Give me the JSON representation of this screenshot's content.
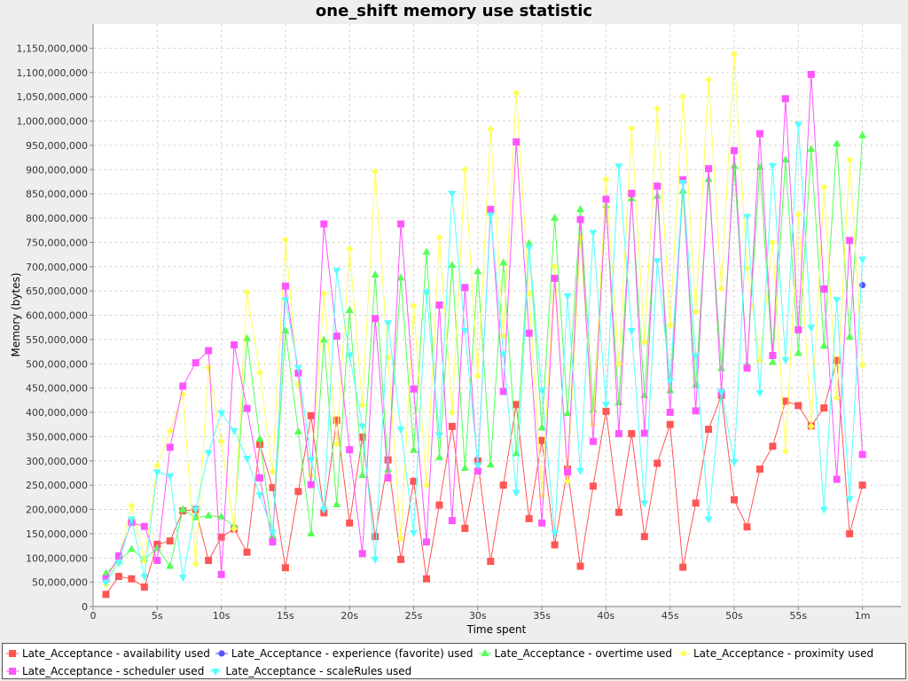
{
  "chart_data": {
    "type": "line",
    "title": "one_shift memory use statistic",
    "xlabel": "Time spent",
    "ylabel": "Memory (bytes)",
    "xlim": [
      0,
      63
    ],
    "ylim": [
      0,
      1200000000
    ],
    "grid": true,
    "legend_position": "bottom",
    "x_ticks": [
      {
        "value": 0,
        "label": "0"
      },
      {
        "value": 5,
        "label": "5s"
      },
      {
        "value": 10,
        "label": "10s"
      },
      {
        "value": 15,
        "label": "15s"
      },
      {
        "value": 20,
        "label": "20s"
      },
      {
        "value": 25,
        "label": "25s"
      },
      {
        "value": 30,
        "label": "30s"
      },
      {
        "value": 35,
        "label": "35s"
      },
      {
        "value": 40,
        "label": "40s"
      },
      {
        "value": 45,
        "label": "45s"
      },
      {
        "value": 50,
        "label": "50s"
      },
      {
        "value": 55,
        "label": "55s"
      },
      {
        "value": 60,
        "label": "1m"
      }
    ],
    "y_ticks": [
      {
        "value": 0,
        "label": "0"
      },
      {
        "value": 50000000,
        "label": "50,000,000"
      },
      {
        "value": 100000000,
        "label": "100,000,000"
      },
      {
        "value": 150000000,
        "label": "150,000,000"
      },
      {
        "value": 200000000,
        "label": "200,000,000"
      },
      {
        "value": 250000000,
        "label": "250,000,000"
      },
      {
        "value": 300000000,
        "label": "300,000,000"
      },
      {
        "value": 350000000,
        "label": "350,000,000"
      },
      {
        "value": 400000000,
        "label": "400,000,000"
      },
      {
        "value": 450000000,
        "label": "450,000,000"
      },
      {
        "value": 500000000,
        "label": "500,000,000"
      },
      {
        "value": 550000000,
        "label": "550,000,000"
      },
      {
        "value": 600000000,
        "label": "600,000,000"
      },
      {
        "value": 650000000,
        "label": "650,000,000"
      },
      {
        "value": 700000000,
        "label": "700,000,000"
      },
      {
        "value": 750000000,
        "label": "750,000,000"
      },
      {
        "value": 800000000,
        "label": "800,000,000"
      },
      {
        "value": 850000000,
        "label": "850,000,000"
      },
      {
        "value": 900000000,
        "label": "900,000,000"
      },
      {
        "value": 950000000,
        "label": "950,000,000"
      },
      {
        "value": 1000000000,
        "label": "1,000,000,000"
      },
      {
        "value": 1050000000,
        "label": "1,050,000,000"
      },
      {
        "value": 1100000000,
        "label": "1,100,000,000"
      },
      {
        "value": 1150000000,
        "label": "1,150,000,000"
      }
    ],
    "series": [
      {
        "name": "Late_Acceptance - availability used",
        "color": "#ff5555",
        "marker": "square",
        "x": [
          1,
          2,
          3,
          4,
          5,
          6,
          7,
          8,
          9,
          10,
          11,
          12,
          13,
          14,
          15,
          16,
          17,
          18,
          19,
          20,
          21,
          22,
          23,
          24,
          25,
          26,
          27,
          28,
          29,
          30,
          31,
          32,
          33,
          34,
          35,
          36,
          37,
          38,
          39,
          40,
          41,
          42,
          43,
          44,
          45,
          46,
          47,
          48,
          49,
          50,
          51,
          52,
          53,
          54,
          55,
          56,
          57,
          58,
          59,
          60
        ],
        "values": [
          25000000,
          62000000,
          57000000,
          40000000,
          128000000,
          135000000,
          197000000,
          200000000,
          95000000,
          143000000,
          160000000,
          112000000,
          334000000,
          245000000,
          80000000,
          237000000,
          393000000,
          193000000,
          384000000,
          172000000,
          349000000,
          144000000,
          302000000,
          97000000,
          258000000,
          57000000,
          209000000,
          371000000,
          161000000,
          300000000,
          93000000,
          250000000,
          416000000,
          181000000,
          342000000,
          127000000,
          283000000,
          83000000,
          248000000,
          402000000,
          194000000,
          356000000,
          144000000,
          295000000,
          375000000,
          81000000,
          213000000,
          365000000,
          435000000,
          220000000,
          164000000,
          283000000,
          330000000,
          423000000,
          414000000,
          372000000,
          409000000,
          507000000,
          150000000,
          250000000
        ]
      },
      {
        "name": "Late_Acceptance - experience (favorite) used",
        "color": "#5555ff",
        "marker": "circle",
        "x": [
          60
        ],
        "values": [
          662000000
        ]
      },
      {
        "name": "Late_Acceptance - overtime used",
        "color": "#55ff55",
        "marker": "triangle-up",
        "x": [
          1,
          2,
          3,
          4,
          5,
          6,
          7,
          8,
          9,
          10,
          11,
          12,
          13,
          14,
          15,
          16,
          17,
          18,
          19,
          20,
          21,
          22,
          23,
          24,
          25,
          26,
          27,
          28,
          29,
          30,
          31,
          32,
          33,
          34,
          35,
          36,
          37,
          38,
          39,
          40,
          41,
          42,
          43,
          44,
          45,
          46,
          47,
          48,
          49,
          50,
          51,
          52,
          53,
          54,
          55,
          56,
          57,
          58,
          59,
          60
        ],
        "values": [
          68000000,
          93000000,
          118000000,
          97000000,
          120000000,
          83000000,
          200000000,
          183000000,
          187000000,
          185000000,
          165000000,
          552000000,
          345000000,
          145000000,
          568000000,
          360000000,
          150000000,
          549000000,
          210000000,
          610000000,
          270000000,
          683000000,
          282000000,
          677000000,
          322000000,
          730000000,
          307000000,
          703000000,
          285000000,
          690000000,
          292000000,
          708000000,
          315000000,
          748000000,
          368000000,
          800000000,
          398000000,
          818000000,
          405000000,
          826000000,
          420000000,
          840000000,
          435000000,
          845000000,
          445000000,
          856000000,
          456000000,
          880000000,
          490000000,
          907000000,
          498000000,
          905000000,
          503000000,
          920000000,
          522000000,
          942000000,
          537000000,
          953000000,
          555000000,
          970000000
        ]
      },
      {
        "name": "Late_Acceptance - proximity used",
        "color": "#ffff55",
        "marker": "diamond",
        "x": [
          1,
          2,
          3,
          4,
          5,
          6,
          7,
          8,
          9,
          10,
          11,
          12,
          13,
          14,
          15,
          16,
          17,
          18,
          19,
          20,
          21,
          22,
          23,
          24,
          25,
          26,
          27,
          28,
          29,
          30,
          31,
          32,
          33,
          34,
          35,
          36,
          37,
          38,
          39,
          40,
          41,
          42,
          43,
          44,
          45,
          46,
          47,
          48,
          49,
          50,
          51,
          52,
          53,
          54,
          55,
          56,
          57,
          58,
          59,
          60
        ],
        "values": [
          45000000,
          100000000,
          207000000,
          95000000,
          290000000,
          362000000,
          437000000,
          88000000,
          492000000,
          340000000,
          160000000,
          647000000,
          482000000,
          278000000,
          755000000,
          458000000,
          270000000,
          645000000,
          335000000,
          737000000,
          415000000,
          896000000,
          513000000,
          140000000,
          619000000,
          250000000,
          760000000,
          400000000,
          900000000,
          475000000,
          983000000,
          557000000,
          1058000000,
          645000000,
          228000000,
          700000000,
          258000000,
          760000000,
          375000000,
          880000000,
          500000000,
          985000000,
          545000000,
          1025000000,
          580000000,
          1050000000,
          607000000,
          1085000000,
          655000000,
          1138000000,
          697000000,
          507000000,
          750000000,
          320000000,
          808000000,
          371000000,
          864000000,
          430000000,
          920000000,
          497000000
        ]
      },
      {
        "name": "Late_Acceptance - scheduler used",
        "color": "#ff55ff",
        "marker": "square",
        "x": [
          1,
          2,
          3,
          4,
          5,
          6,
          7,
          8,
          9,
          10,
          11,
          12,
          13,
          14,
          15,
          16,
          17,
          18,
          19,
          20,
          21,
          22,
          23,
          24,
          25,
          26,
          27,
          28,
          29,
          30,
          31,
          32,
          33,
          34,
          35,
          36,
          37,
          38,
          39,
          40,
          41,
          42,
          43,
          44,
          45,
          46,
          47,
          48,
          49,
          50,
          51,
          52,
          53,
          54,
          55,
          56,
          57,
          58,
          59,
          60
        ],
        "values": [
          57000000,
          104000000,
          173000000,
          165000000,
          95000000,
          328000000,
          454000000,
          502000000,
          527000000,
          66000000,
          539000000,
          408000000,
          265000000,
          133000000,
          660000000,
          481000000,
          251000000,
          788000000,
          557000000,
          323000000,
          109000000,
          593000000,
          265000000,
          788000000,
          448000000,
          133000000,
          621000000,
          177000000,
          657000000,
          279000000,
          818000000,
          443000000,
          957000000,
          563000000,
          172000000,
          676000000,
          277000000,
          797000000,
          340000000,
          839000000,
          356000000,
          851000000,
          357000000,
          866000000,
          400000000,
          879000000,
          403000000,
          902000000,
          441000000,
          939000000,
          491000000,
          974000000,
          517000000,
          1046000000,
          570000000,
          1096000000,
          654000000,
          262000000,
          754000000,
          313000000
        ]
      },
      {
        "name": "Late_Acceptance - scaleRules used",
        "color": "#55ffff",
        "marker": "triangle-down",
        "x": [
          1,
          2,
          3,
          4,
          5,
          6,
          7,
          8,
          9,
          10,
          11,
          12,
          13,
          14,
          15,
          16,
          17,
          18,
          19,
          20,
          21,
          22,
          23,
          24,
          25,
          26,
          27,
          28,
          29,
          30,
          31,
          32,
          33,
          34,
          35,
          36,
          37,
          38,
          39,
          40,
          41,
          42,
          43,
          44,
          45,
          46,
          47,
          48,
          49,
          50,
          51,
          52,
          53,
          54,
          55,
          56,
          57,
          58,
          59,
          60
        ],
        "values": [
          50000000,
          90000000,
          180000000,
          62000000,
          277000000,
          269000000,
          60000000,
          200000000,
          317000000,
          399000000,
          362000000,
          305000000,
          230000000,
          153000000,
          632000000,
          492000000,
          303000000,
          200000000,
          692000000,
          518000000,
          372000000,
          97000000,
          584000000,
          365000000,
          152000000,
          647000000,
          353000000,
          851000000,
          568000000,
          291000000,
          806000000,
          520000000,
          235000000,
          740000000,
          445000000,
          152000000,
          640000000,
          280000000,
          770000000,
          416000000,
          907000000,
          568000000,
          213000000,
          712000000,
          465000000,
          873000000,
          517000000,
          180000000,
          442000000,
          298000000,
          803000000,
          440000000,
          908000000,
          508000000,
          993000000,
          575000000,
          200000000,
          632000000,
          222000000,
          715000000
        ]
      }
    ]
  }
}
